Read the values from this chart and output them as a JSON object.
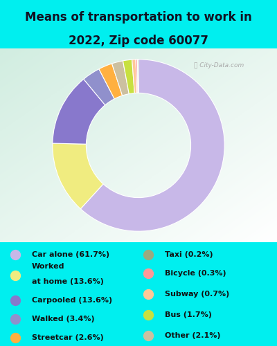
{
  "title_line1": "Means of transportation to work in",
  "title_line2": "2022, Zip code 60077",
  "title_fontsize": 12,
  "bg_cyan": "#00EFEF",
  "chart_bg_color": "#e0f0e8",
  "slices": [
    {
      "label": "Car alone (61.7%)",
      "value": 61.7,
      "color": "#c8b8e8"
    },
    {
      "label": "Worked at home (13.6%)",
      "value": 13.6,
      "color": "#f0ec80"
    },
    {
      "label": "Carpooled (13.6%)",
      "value": 13.6,
      "color": "#8878cc"
    },
    {
      "label": "Walked (3.4%)",
      "value": 3.4,
      "color": "#9090cc"
    },
    {
      "label": "Streetcar (2.6%)",
      "value": 2.6,
      "color": "#ffb040"
    },
    {
      "label": "Other (2.1%)",
      "value": 2.1,
      "color": "#ccc0a0"
    },
    {
      "label": "Bus (1.7%)",
      "value": 1.7,
      "color": "#c8e040"
    },
    {
      "label": "Subway (0.7%)",
      "value": 0.7,
      "color": "#ffc898"
    },
    {
      "label": "Bicycle (0.3%)",
      "value": 0.3,
      "color": "#ff9898"
    },
    {
      "label": "Taxi (0.2%)",
      "value": 0.2,
      "color": "#9aaa80"
    }
  ],
  "legend_left": [
    {
      "label": "Car alone (61.7%)",
      "color": "#c8b8e8"
    },
    {
      "label": "Worked",
      "label2": "at home (13.6%)",
      "color": "#f0ec80"
    },
    {
      "label": "Carpooled (13.6%)",
      "color": "#8878cc"
    },
    {
      "label": "Walked (3.4%)",
      "color": "#9090cc"
    },
    {
      "label": "Streetcar (2.6%)",
      "color": "#ffb040"
    }
  ],
  "legend_right": [
    {
      "label": "Taxi (0.2%)",
      "color": "#9aaa80"
    },
    {
      "label": "Bicycle (0.3%)",
      "color": "#ff9898"
    },
    {
      "label": "Subway (0.7%)",
      "color": "#ffc898"
    },
    {
      "label": "Bus (1.7%)",
      "color": "#c8e040"
    },
    {
      "label": "Other (2.1%)",
      "color": "#ccc0a0"
    }
  ],
  "donut_width": 0.36,
  "startangle": 90
}
